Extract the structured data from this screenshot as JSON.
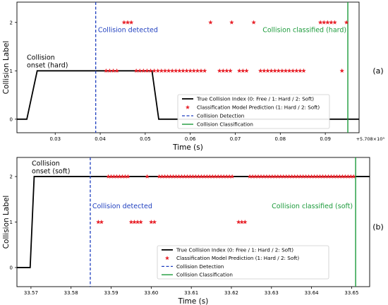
{
  "colors": {
    "true_line": "#000000",
    "prediction": "#e8232b",
    "detection": "#1f3fbf",
    "classification": "#1b9a3a"
  },
  "chart_data": [
    {
      "type": "line",
      "panel_label": "(a)",
      "xlabel": "Time (s)",
      "ylabel": "Collision Label",
      "xlim": [
        0.0215,
        0.0975
      ],
      "ylim": [
        -0.28,
        2.42
      ],
      "x_ticks": [
        0.03,
        0.04,
        0.05,
        0.06,
        0.07,
        0.08,
        0.09
      ],
      "x_tick_labels": [
        "0.03",
        "0.04",
        "0.05",
        "0.06",
        "0.07",
        "0.08",
        "0.09"
      ],
      "x_offset_label": "+5.708×10³",
      "y_ticks": [
        0,
        1,
        2
      ],
      "y_tick_labels": [
        "0",
        "1",
        "2"
      ],
      "grid": false,
      "legend_position": "lower-right",
      "legend": [
        "True Collision Index (0: Free / 1: Hard / 2: Soft)",
        "Classification Model Prediction (1: Hard / 2: Soft)",
        "Collision Detection",
        "Collision Classification"
      ],
      "true_index": {
        "x": [
          0.0215,
          0.0237,
          0.026,
          0.0515,
          0.053,
          0.0975
        ],
        "y": [
          0,
          0,
          1,
          1,
          0,
          0
        ]
      },
      "prediction_points": {
        "x": [
          0.0453,
          0.0461,
          0.0469,
          0.0645,
          0.0692,
          0.0741,
          0.0413,
          0.0421,
          0.0429,
          0.0437,
          0.048,
          0.0488,
          0.0496,
          0.0504,
          0.0512,
          0.052,
          0.0528,
          0.0536,
          0.0544,
          0.0552,
          0.056,
          0.0568,
          0.0576,
          0.0584,
          0.0592,
          0.06,
          0.0608,
          0.0616,
          0.0624,
          0.0632,
          0.0665,
          0.0673,
          0.0681,
          0.0689,
          0.0709,
          0.0717,
          0.0725,
          0.0756,
          0.0764,
          0.0772,
          0.078,
          0.0788,
          0.0796,
          0.0804,
          0.0812,
          0.082,
          0.0828,
          0.0836,
          0.0844,
          0.0852,
          0.0889,
          0.0897,
          0.0905,
          0.0913,
          0.0921,
          0.0937,
          0.0947
        ],
        "y": [
          2,
          2,
          2,
          2,
          2,
          2,
          1,
          1,
          1,
          1,
          1,
          1,
          1,
          1,
          1,
          1,
          1,
          1,
          1,
          1,
          1,
          1,
          1,
          1,
          1,
          1,
          1,
          1,
          1,
          1,
          1,
          1,
          1,
          1,
          1,
          1,
          1,
          1,
          1,
          1,
          1,
          1,
          1,
          1,
          1,
          1,
          1,
          1,
          1,
          1,
          2,
          2,
          2,
          2,
          2,
          1,
          2
        ]
      },
      "collision_detection_x": 0.039,
      "collision_classification_x": 0.095,
      "annotations": [
        {
          "text": "Collision onset (hard)",
          "lines": [
            "Collision",
            "onset (hard)"
          ],
          "x": 0.0237,
          "y": 1.07
        },
        {
          "text": "Collision detected",
          "lines": [
            "Collision detected"
          ],
          "x": 0.0395,
          "y": 1.8
        },
        {
          "text": "Collision classified (hard)",
          "lines": [
            "Collision classified (hard)"
          ],
          "x": 0.0947,
          "y": 1.8
        }
      ]
    },
    {
      "type": "line",
      "panel_label": "(b)",
      "xlabel": "Time (s)",
      "ylabel": "Collision Label",
      "xlim": [
        33.5665,
        33.6545
      ],
      "ylim": [
        -0.42,
        2.42
      ],
      "x_ticks": [
        33.57,
        33.58,
        33.59,
        33.6,
        33.61,
        33.62,
        33.63,
        33.64,
        33.65
      ],
      "x_tick_labels": [
        "33.57",
        "33.58",
        "33.59",
        "33.60",
        "33.61",
        "33.62",
        "33.63",
        "33.64",
        "33.65"
      ],
      "y_ticks": [
        0,
        1,
        2
      ],
      "y_tick_labels": [
        "0",
        "1",
        "2"
      ],
      "grid": false,
      "legend_position": "lower-right",
      "legend": [
        "True Collision Index (0: Free / 1: Hard / 2: Soft)",
        "Classification Model Prediction (1: Hard / 2: Soft)",
        "Collision Detection",
        "Collision Classification"
      ],
      "true_index": {
        "x": [
          33.5665,
          33.5698,
          33.5708,
          33.6545
        ],
        "y": [
          0,
          0,
          2,
          2
        ]
      },
      "prediction_points": {
        "x": [
          33.5893,
          33.59,
          33.5907,
          33.5914,
          33.5921,
          33.5928,
          33.5935,
          33.5942,
          33.599,
          33.602,
          33.6027,
          33.6034,
          33.6041,
          33.6048,
          33.6055,
          33.6062,
          33.6069,
          33.6076,
          33.6083,
          33.609,
          33.6097,
          33.6104,
          33.6111,
          33.6118,
          33.6125,
          33.6132,
          33.6139,
          33.6146,
          33.6153,
          33.616,
          33.6167,
          33.6174,
          33.6181,
          33.6188,
          33.6195,
          33.6202,
          33.6246,
          33.6253,
          33.626,
          33.6267,
          33.6274,
          33.6281,
          33.6288,
          33.6295,
          33.6302,
          33.6309,
          33.6316,
          33.6323,
          33.633,
          33.6337,
          33.6344,
          33.6351,
          33.6358,
          33.6365,
          33.6372,
          33.6379,
          33.6386,
          33.6393,
          33.64,
          33.6407,
          33.6414,
          33.6421,
          33.6428,
          33.6435,
          33.6442,
          33.6449,
          33.6456,
          33.6463,
          33.647,
          33.6477,
          33.6484,
          33.6491,
          33.6498,
          33.6505,
          33.5868,
          33.5876,
          33.595,
          33.5958,
          33.5966,
          33.5974,
          33.6,
          33.6008,
          33.6218,
          33.6226,
          33.6234
        ],
        "y": [
          2,
          2,
          2,
          2,
          2,
          2,
          2,
          2,
          2,
          2,
          2,
          2,
          2,
          2,
          2,
          2,
          2,
          2,
          2,
          2,
          2,
          2,
          2,
          2,
          2,
          2,
          2,
          2,
          2,
          2,
          2,
          2,
          2,
          2,
          2,
          2,
          2,
          2,
          2,
          2,
          2,
          2,
          2,
          2,
          2,
          2,
          2,
          2,
          2,
          2,
          2,
          2,
          2,
          2,
          2,
          2,
          2,
          2,
          2,
          2,
          2,
          2,
          2,
          2,
          2,
          2,
          2,
          2,
          2,
          2,
          2,
          2,
          2,
          2,
          1,
          1,
          1,
          1,
          1,
          1,
          1,
          1,
          1,
          1,
          1
        ]
      },
      "collision_detection_x": 33.5848,
      "collision_classification_x": 33.651,
      "annotations": [
        {
          "text": "Collision onset (soft)",
          "lines": [
            "Collision",
            "onset (soft)"
          ],
          "x": 33.5702,
          "y": 2.07
        },
        {
          "text": "Collision detected",
          "lines": [
            "Collision detected"
          ],
          "x": 33.5853,
          "y": 1.3
        },
        {
          "text": "Collision classified (soft)",
          "lines": [
            "Collision classified (soft)"
          ],
          "x": 33.6503,
          "y": 1.3
        }
      ]
    }
  ]
}
